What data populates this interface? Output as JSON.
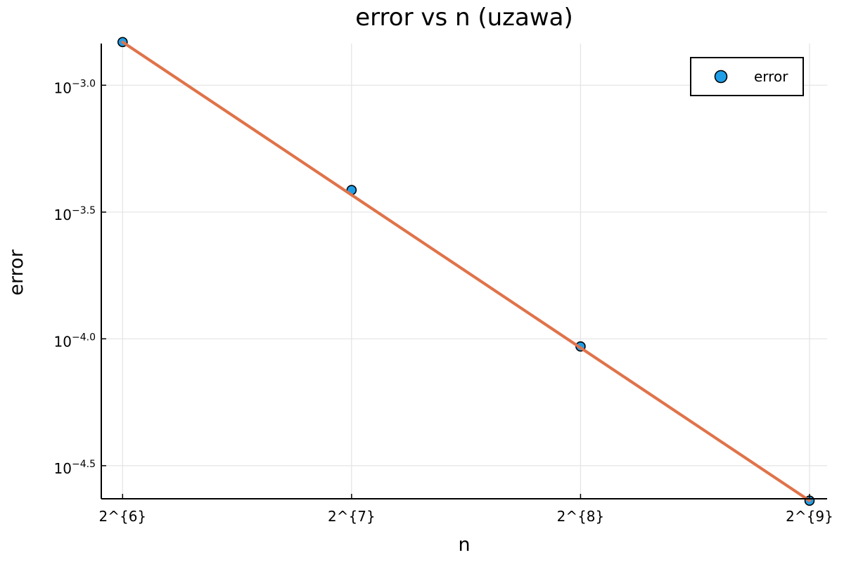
{
  "chart_data": {
    "type": "scatter",
    "title": "error vs n (uzawa)",
    "xlabel": "n",
    "ylabel": "error",
    "x_scale": "log2",
    "y_scale": "log10",
    "xlim": [
      60,
      540
    ],
    "ylim": [
      2.34e-05,
      0.00146
    ],
    "x_ticks": [
      {
        "value": 64,
        "label": "2^{6}"
      },
      {
        "value": 128,
        "label": "2^{7}"
      },
      {
        "value": 256,
        "label": "2^{8}"
      },
      {
        "value": 512,
        "label": "2^{9}"
      }
    ],
    "y_ticks": [
      {
        "value": 0.001,
        "base": "10",
        "exp": "−3.0"
      },
      {
        "value": 0.000316,
        "base": "10",
        "exp": "−3.5"
      },
      {
        "value": 0.0001,
        "base": "10",
        "exp": "−4.0"
      },
      {
        "value": 3.16e-05,
        "base": "10",
        "exp": "−4.5"
      }
    ],
    "grid": true,
    "legend_position": "top-right",
    "series": [
      {
        "name": "error",
        "kind": "scatter",
        "color": "#1f9ee8",
        "x": [
          64,
          128,
          256,
          512
        ],
        "y": [
          0.00148,
          0.000386,
          9.33e-05,
          2.3e-05
        ]
      },
      {
        "kind": "line",
        "color": "#e0734a",
        "x": [
          64,
          512
        ],
        "y": [
          0.00148,
          2.3e-05
        ]
      }
    ]
  }
}
